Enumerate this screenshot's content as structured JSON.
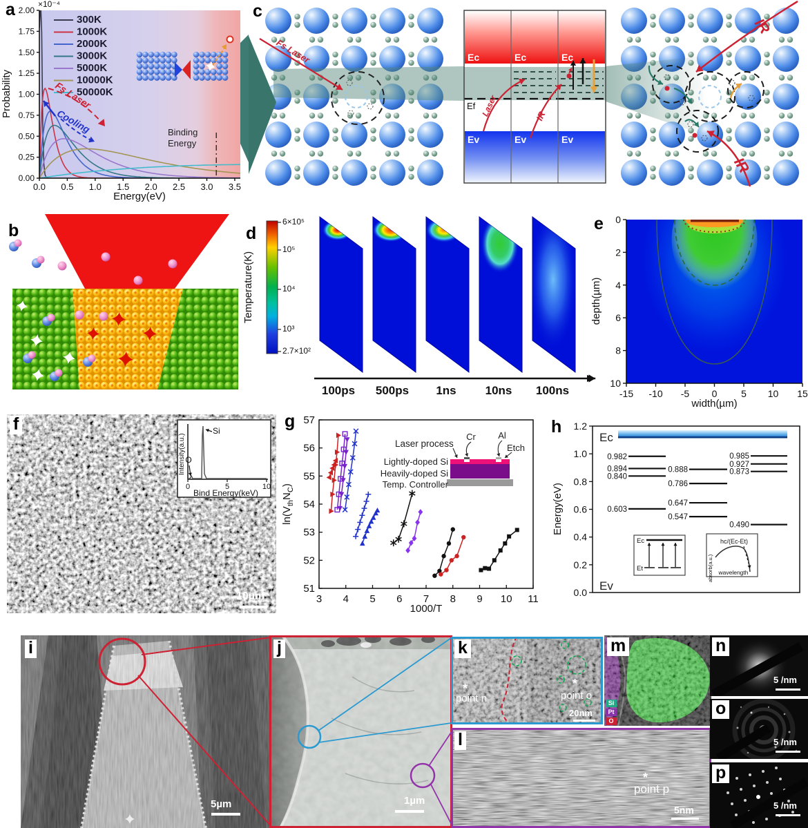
{
  "labels": {
    "a": "a",
    "b": "b",
    "c": "c",
    "d": "d",
    "e": "e",
    "f": "f",
    "g": "g",
    "h": "h",
    "i": "i",
    "j": "j",
    "k": "k",
    "l": "l",
    "m": "m",
    "n": "n",
    "o": "o",
    "p": "p"
  },
  "panel_c": {
    "fs_laser": "Fs Laser",
    "ec": [
      "Ec",
      "Ec",
      "Ec"
    ],
    "ef": "Ef",
    "ev": [
      "Ev",
      "Ev",
      "Ev"
    ],
    "laser": "Laser",
    "ir_mid": "IR",
    "ir_top": "IR",
    "ir_bottom": "IR"
  },
  "panel_f": {
    "inset": {
      "ylabel": "Intensity(a.u.)",
      "xlabel": "Bind Energy(keV)",
      "xticks": [
        "0",
        "5",
        "10"
      ],
      "peak_labels": [
        "O",
        "Si"
      ]
    },
    "scalebar": "10µm"
  },
  "panel_i": {
    "scalebar": "5µm"
  },
  "panel_j": {
    "scalebar": "1µm"
  },
  "panel_k": {
    "points": [
      "point n",
      "point o"
    ],
    "star": "*",
    "scalebar": "20nm"
  },
  "panel_l": {
    "point": "point p",
    "star": "*",
    "scalebar": "5nm"
  },
  "panel_m": {
    "legend": [
      {
        "label": "Si",
        "color": "#22aa88"
      },
      {
        "label": "Pt",
        "color": "#8833aa"
      },
      {
        "label": "O",
        "color": "#cc2233"
      }
    ]
  },
  "panel_n": {
    "scalebar": "5 /nm"
  },
  "panel_o": {
    "scalebar": "5 /nm"
  },
  "panel_p": {
    "scalebar": "5 /nm"
  },
  "chart_data": [
    {
      "panel": "a",
      "type": "line",
      "xlabel": "Energy(eV)",
      "ylabel": "Probability",
      "y_scale": "×10⁻⁴",
      "xlim": [
        0,
        3.6
      ],
      "ylim": [
        0,
        2
      ],
      "xticks": [
        "0.0",
        "0.5",
        "1.0",
        "1.5",
        "2.0",
        "2.5",
        "3.0",
        "3.5"
      ],
      "yticks": [
        "0.00",
        "0.25",
        "0.50",
        "0.75",
        "1.00",
        "1.25",
        "1.50",
        "1.75",
        "2.00"
      ],
      "curve_model": "y = peak_y*(x/peak_x)*exp(1-x/peak_x), y in units of 1e-4",
      "series": [
        {
          "label": "300K",
          "color": "#3c3c50",
          "peak_x": 0.013,
          "peak_y": 5.0
        },
        {
          "label": "1000K",
          "color": "#cc3344",
          "peak_x": 0.1,
          "peak_y": 1.07
        },
        {
          "label": "2000K",
          "color": "#4466cc",
          "peak_x": 0.2,
          "peak_y": 0.8
        },
        {
          "label": "3000K",
          "color": "#337788",
          "peak_x": 0.27,
          "peak_y": 0.63
        },
        {
          "label": "5000K",
          "color": "#9977cc",
          "peak_x": 0.44,
          "peak_y": 0.47
        },
        {
          "label": "10000K",
          "color": "#a39552",
          "peak_x": 0.85,
          "peak_y": 0.35
        },
        {
          "label": "50000K",
          "color": "#44bbcc",
          "peak_x": 4.3,
          "peak_y": 0.165
        }
      ],
      "annotations": {
        "fs_laser": "Fs Laser",
        "cooling": "Cooling",
        "binding": "Binding\nEnergy",
        "binding_x": 3.17
      }
    },
    {
      "panel": "d",
      "type": "heatmap",
      "colorbar_title": "Temperature(K)",
      "colorbar_ticks": [
        "6×10⁵",
        "10⁵",
        "10⁴",
        "10³",
        "2.7×10²"
      ],
      "times": [
        "100ps",
        "500ps",
        "1ns",
        "10ns",
        "100ns"
      ]
    },
    {
      "panel": "e",
      "type": "heatmap",
      "xlabel": "width(µm)",
      "ylabel": "depth(µm)",
      "xticks": [
        "-15",
        "-10",
        "-5",
        "0",
        "5",
        "10",
        "15"
      ],
      "yticks": [
        "0",
        "2",
        "4",
        "6",
        "8",
        "10"
      ],
      "contours": {
        "solid_depth_um": 8.8,
        "dashed_depth_um": 4.0,
        "dotted_depth_um": 0.75
      }
    },
    {
      "panel": "g",
      "type": "scatter",
      "xlabel": "1000/T",
      "ylabel": "ln(VthNC)",
      "ylabel_parts": [
        "ln(V",
        "th",
        "N",
        "C",
        ")"
      ],
      "xlim": [
        3,
        11
      ],
      "ylim": [
        51,
        57
      ],
      "xticks": [
        3,
        4,
        5,
        6,
        7,
        8,
        9,
        10,
        11
      ],
      "yticks": [
        51,
        52,
        53,
        54,
        55,
        56,
        57
      ],
      "inset": {
        "callouts": [
          "Laser process",
          "Cr",
          "Al",
          "Etch"
        ],
        "layers": [
          "Lightly-doped Si",
          "Heavily-doped Si",
          "Temp. Controller"
        ]
      },
      "series": [
        {
          "color": "#cc2222",
          "marker": "tri-right",
          "points": [
            [
              3.45,
              53.75
            ],
            [
              3.5,
              54.35
            ],
            [
              3.56,
              54.85
            ],
            [
              3.62,
              55.4
            ],
            [
              3.67,
              55.85
            ],
            [
              3.72,
              56.45
            ]
          ]
        },
        {
          "color": "#cc2222",
          "marker": "tri-left",
          "points": [
            [
              3.38,
              54.95
            ],
            [
              3.44,
              55.12
            ],
            [
              3.5,
              55.28
            ],
            [
              3.56,
              55.4
            ],
            [
              3.62,
              55.55
            ]
          ]
        },
        {
          "color": "#7722cc",
          "marker": "square-open",
          "points": [
            [
              3.68,
              53.8
            ],
            [
              3.74,
              54.35
            ],
            [
              3.8,
              54.9
            ],
            [
              3.86,
              55.45
            ],
            [
              3.92,
              55.95
            ],
            [
              3.97,
              56.5
            ]
          ]
        },
        {
          "color": "#7722cc",
          "marker": "tri-down",
          "points": [
            [
              3.78,
              53.85
            ],
            [
              3.84,
              54.35
            ],
            [
              3.9,
              54.85
            ],
            [
              3.96,
              55.35
            ],
            [
              4.01,
              55.85
            ],
            [
              4.05,
              56.3
            ]
          ]
        },
        {
          "color": "#2233cc",
          "marker": "x",
          "points": [
            [
              3.97,
              53.8
            ],
            [
              4.04,
              54.25
            ],
            [
              4.11,
              54.7
            ],
            [
              4.18,
              55.15
            ],
            [
              4.26,
              55.65
            ],
            [
              4.33,
              56.15
            ],
            [
              4.38,
              56.6
            ]
          ]
        },
        {
          "color": "#2233cc",
          "marker": "plus",
          "points": [
            [
              4.37,
              52.85
            ],
            [
              4.45,
              53.1
            ],
            [
              4.53,
              53.35
            ],
            [
              4.61,
              53.6
            ],
            [
              4.69,
              53.85
            ],
            [
              4.77,
              54.1
            ],
            [
              4.84,
              54.35
            ]
          ]
        },
        {
          "color": "#2233cc",
          "marker": "tri-up",
          "points": [
            [
              4.62,
              52.6
            ],
            [
              4.71,
              52.85
            ],
            [
              4.79,
              53.05
            ],
            [
              4.87,
              53.22
            ],
            [
              4.95,
              53.38
            ],
            [
              5.03,
              53.52
            ],
            [
              5.12,
              53.68
            ],
            [
              5.18,
              53.78
            ]
          ]
        },
        {
          "color": "#111111",
          "marker": "star",
          "points": [
            [
              5.78,
              52.62
            ],
            [
              5.97,
              52.75
            ],
            [
              6.17,
              53.3
            ],
            [
              6.48,
              54.38
            ]
          ]
        },
        {
          "color": "#8833ee",
          "marker": "diamond",
          "points": [
            [
              6.32,
              52.35
            ],
            [
              6.44,
              52.62
            ],
            [
              6.56,
              52.78
            ],
            [
              6.68,
              53.35
            ],
            [
              6.79,
              53.72
            ]
          ]
        },
        {
          "color": "#111111",
          "marker": "circle",
          "points": [
            [
              7.32,
              51.45
            ],
            [
              7.5,
              51.62
            ],
            [
              7.66,
              52.15
            ],
            [
              7.85,
              52.6
            ],
            [
              8.0,
              53.1
            ]
          ]
        },
        {
          "color": "#cc2222",
          "marker": "circle",
          "points": [
            [
              7.55,
              51.5
            ],
            [
              7.76,
              51.65
            ],
            [
              7.95,
              52.0
            ],
            [
              8.15,
              52.15
            ],
            [
              8.4,
              52.82
            ]
          ]
        },
        {
          "color": "#111111",
          "marker": "square",
          "points": [
            [
              9.05,
              51.65
            ],
            [
              9.2,
              51.72
            ],
            [
              9.35,
              51.7
            ],
            [
              9.55,
              52.0
            ],
            [
              9.78,
              52.35
            ],
            [
              9.95,
              52.6
            ],
            [
              10.1,
              52.85
            ],
            [
              10.4,
              53.08
            ]
          ]
        }
      ]
    },
    {
      "panel": "h",
      "type": "energy-levels",
      "ylabel": "Energy(eV)",
      "yticks": [
        "0.0",
        "0.2",
        "0.4",
        "0.6",
        "0.8",
        "1.0",
        "1.2"
      ],
      "band_top": "Ec",
      "band_bottom": "Ev",
      "levels": {
        "left": [
          "0.982",
          "0.894",
          "0.840",
          "0.603"
        ],
        "mid": [
          "0.888",
          "0.786",
          "0.647",
          "0.547"
        ],
        "right": [
          "0.985",
          "0.927",
          "0.873",
          "0.490"
        ]
      },
      "inset_transitions": {
        "ec": "Ec",
        "et": "Et"
      },
      "inset_absorption": {
        "ylabel": "absorb(a.u.)",
        "xlabel": "wavelength",
        "annotation": "hc/(Ec-Et)"
      }
    }
  ]
}
